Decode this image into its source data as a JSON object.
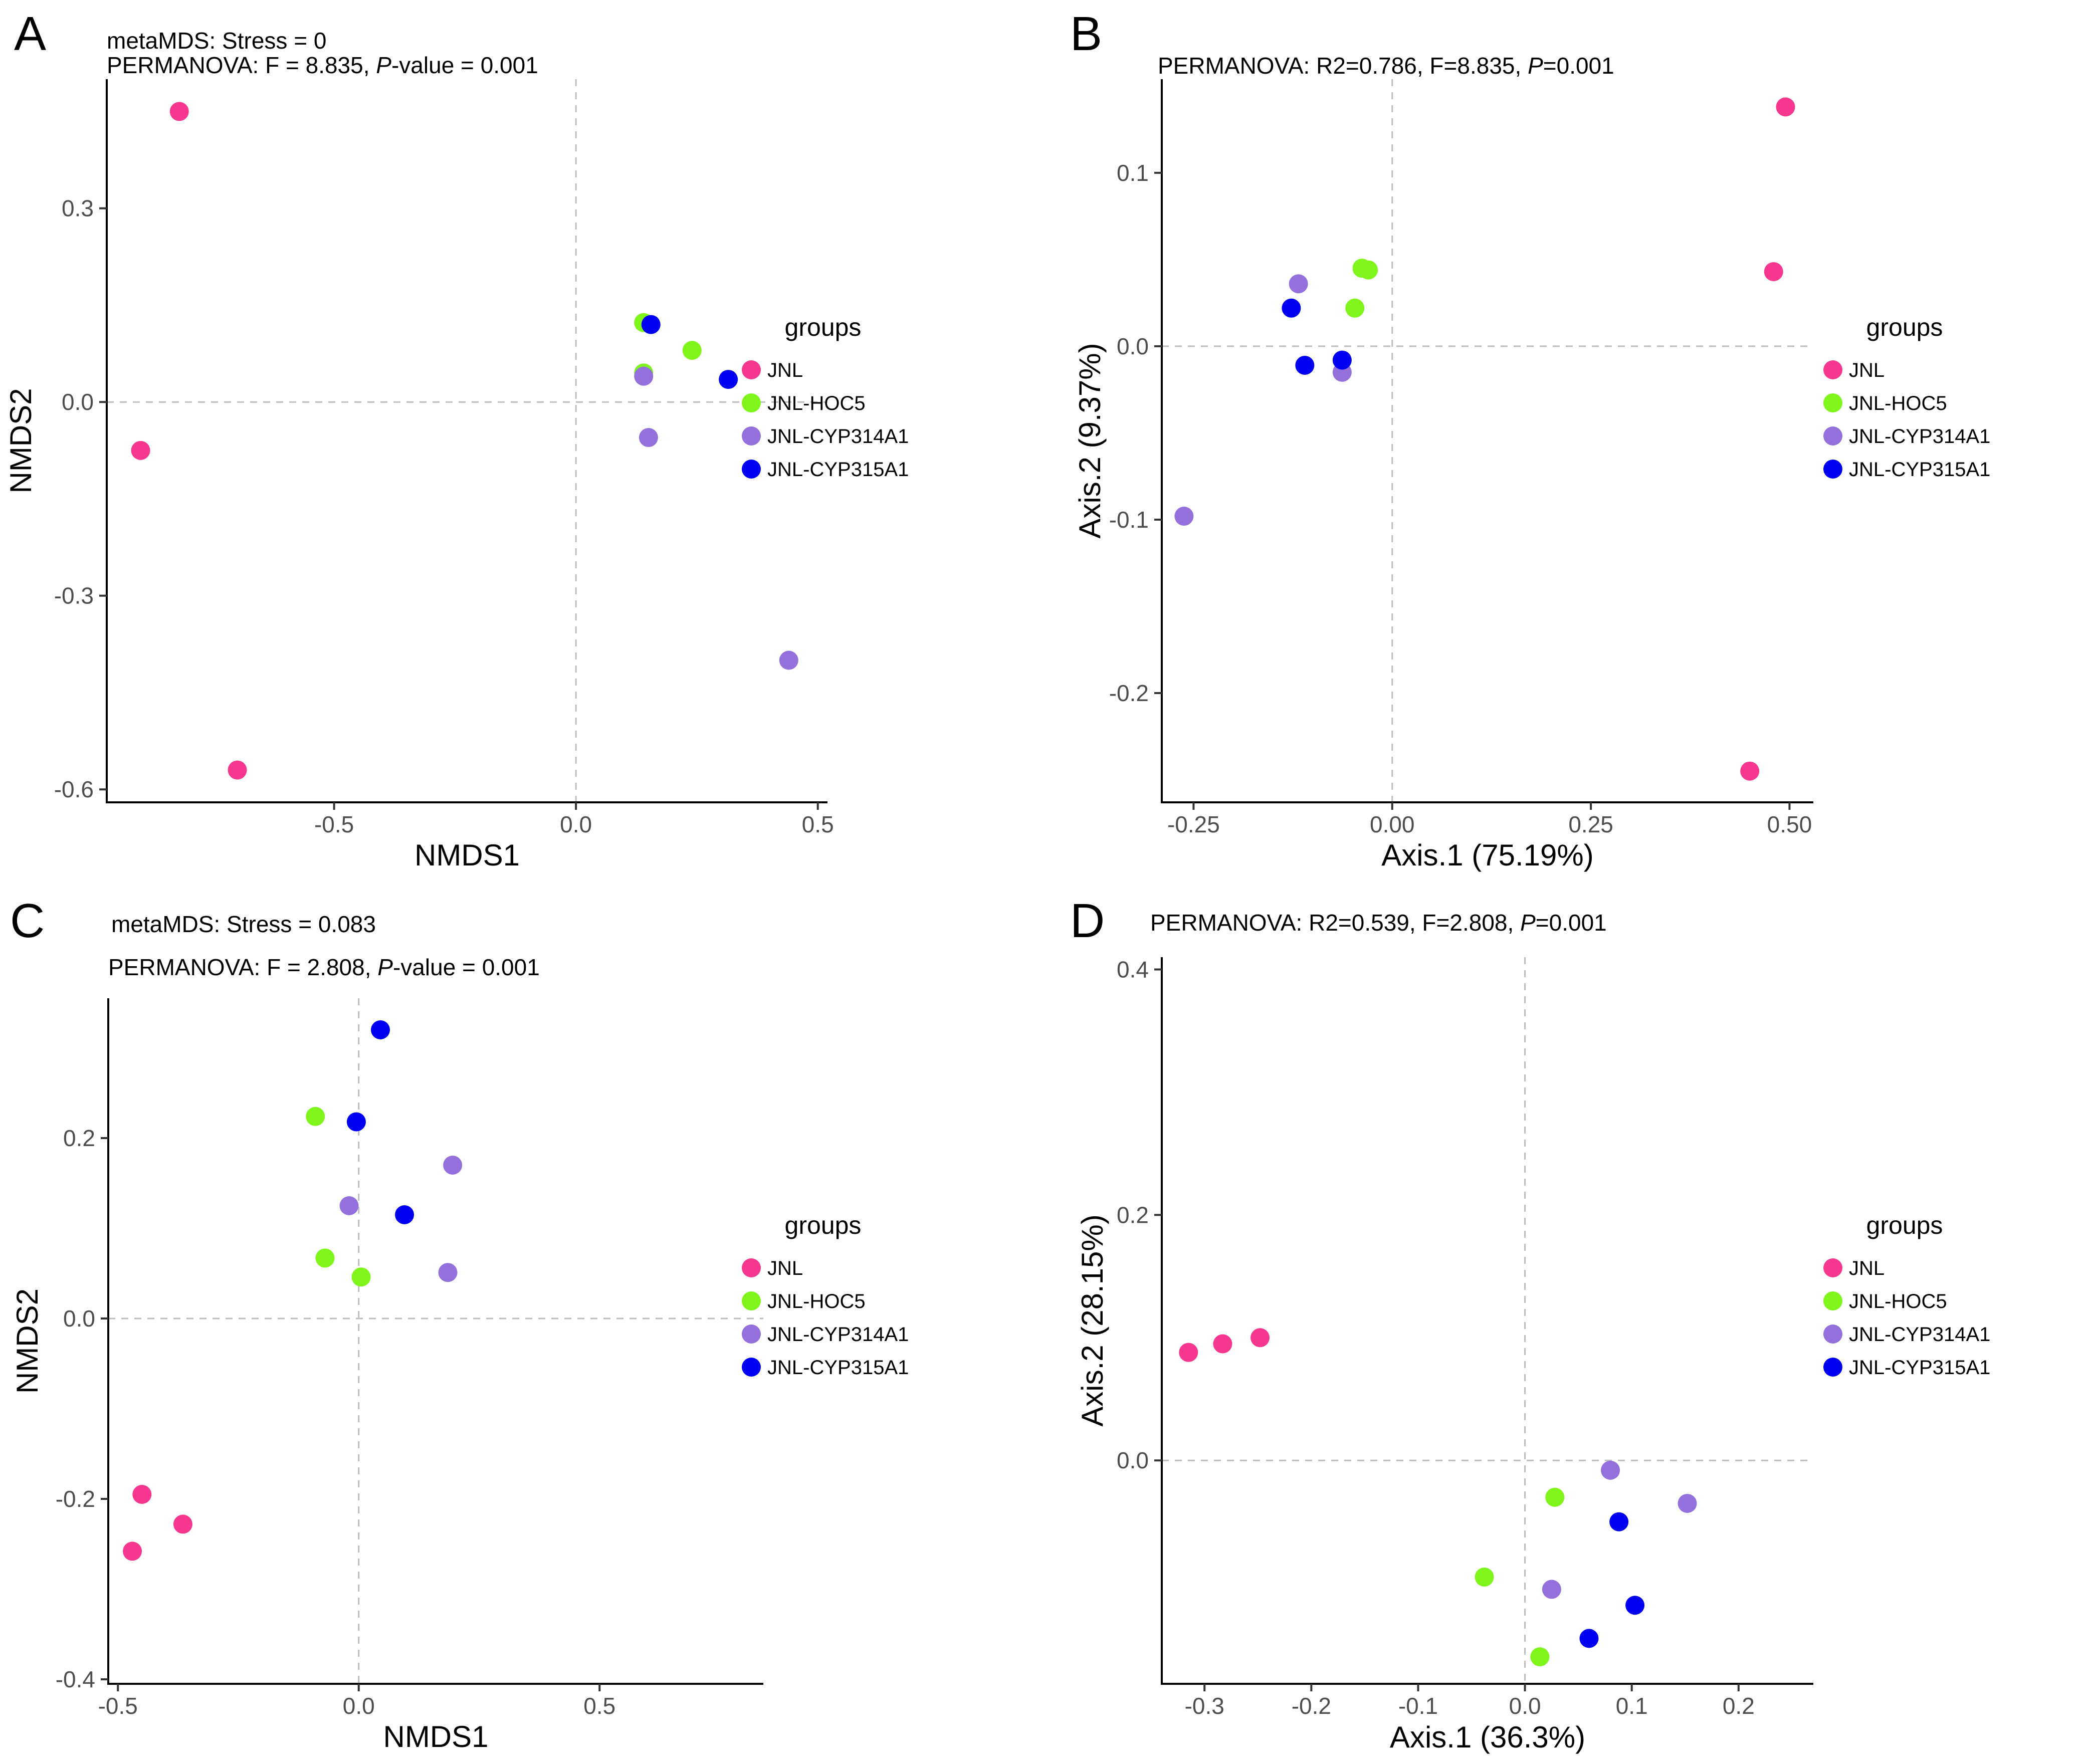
{
  "figure": {
    "groups": [
      {
        "name": "JNL",
        "color": "#f7378f"
      },
      {
        "name": "JNL-HOC5",
        "color": "#80f51c"
      },
      {
        "name": "JNL-CYP314A1",
        "color": "#9370db"
      },
      {
        "name": "JNL-CYP315A1",
        "color": "#0000f2"
      }
    ]
  },
  "chart_data": [
    {
      "panel": "A",
      "type": "scatter",
      "annotation_lines": [
        [
          {
            "text": "metaMDS: Stress = 0",
            "italic": false
          }
        ],
        [
          {
            "text": "PERMANOVA: F = 8.835, ",
            "italic": false
          },
          {
            "text": "P",
            "italic": true
          },
          {
            "text": "-value = 0.001",
            "italic": false
          }
        ]
      ],
      "xlabel": "NMDS1",
      "ylabel": "NMDS2",
      "xlim": [
        -0.97,
        0.52
      ],
      "ylim": [
        -0.62,
        0.5
      ],
      "xticks": [
        -0.5,
        0.0,
        0.5
      ],
      "xtick_labels": [
        "-0.5",
        "0.0",
        "0.5"
      ],
      "yticks": [
        -0.6,
        -0.3,
        0.0,
        0.3
      ],
      "ytick_labels": [
        "-0.6",
        "-0.3",
        "0.0",
        "0.3"
      ],
      "ref_x": 0,
      "ref_y": 0,
      "legend_title": "groups",
      "legend_position": "right",
      "series": [
        {
          "name": "JNL",
          "points": [
            [
              -0.82,
              0.45
            ],
            [
              -0.9,
              -0.075
            ],
            [
              -0.7,
              -0.57
            ]
          ]
        },
        {
          "name": "JNL-HOC5",
          "points": [
            [
              0.14,
              0.123
            ],
            [
              0.24,
              0.08
            ],
            [
              0.14,
              0.045
            ]
          ]
        },
        {
          "name": "JNL-CYP314A1",
          "points": [
            [
              0.14,
              0.04
            ],
            [
              0.15,
              -0.055
            ],
            [
              0.44,
              -0.4
            ]
          ]
        },
        {
          "name": "JNL-CYP315A1",
          "points": [
            [
              0.155,
              0.12
            ],
            [
              0.315,
              0.035
            ]
          ]
        }
      ]
    },
    {
      "panel": "B",
      "type": "scatter",
      "annotation_lines": [
        [
          {
            "text": "PERMANOVA: R2=0.786, F=8.835, ",
            "italic": false
          },
          {
            "text": "P",
            "italic": true
          },
          {
            "text": "=0.001",
            "italic": false
          }
        ]
      ],
      "xlabel": "Axis.1 (75.19%)",
      "ylabel": "Axis.2 (9.37%)",
      "xlim": [
        -0.29,
        0.53
      ],
      "ylim": [
        -0.263,
        0.154
      ],
      "xticks": [
        -0.25,
        0.0,
        0.25,
        0.5
      ],
      "xtick_labels": [
        "-0.25",
        "0.00",
        "0.25",
        "0.50"
      ],
      "yticks": [
        -0.2,
        -0.1,
        0.0,
        0.1
      ],
      "ytick_labels": [
        "-0.2",
        "-0.1",
        "0.0",
        "0.1"
      ],
      "ref_x": 0,
      "ref_y": 0,
      "legend_title": "groups",
      "legend_position": "right",
      "series": [
        {
          "name": "JNL",
          "points": [
            [
              0.495,
              0.138
            ],
            [
              0.48,
              0.043
            ],
            [
              0.45,
              -0.245
            ]
          ]
        },
        {
          "name": "JNL-HOC5",
          "points": [
            [
              -0.038,
              0.045
            ],
            [
              -0.03,
              0.044
            ],
            [
              -0.047,
              0.022
            ]
          ]
        },
        {
          "name": "JNL-CYP314A1",
          "points": [
            [
              -0.118,
              0.036
            ],
            [
              -0.063,
              -0.015
            ],
            [
              -0.262,
              -0.098
            ]
          ]
        },
        {
          "name": "JNL-CYP315A1",
          "points": [
            [
              -0.127,
              0.022
            ],
            [
              -0.11,
              -0.011
            ],
            [
              -0.063,
              -0.008
            ]
          ]
        }
      ]
    },
    {
      "panel": "C",
      "type": "scatter",
      "annotation_lines": [
        [
          {
            "text": "metaMDS: Stress = 0.083",
            "italic": false
          }
        ],
        [
          {
            "text": "PERMANOVA: F = 2.808, ",
            "italic": false
          },
          {
            "text": "P",
            "italic": true
          },
          {
            "text": "-value = 0.001",
            "italic": false
          }
        ]
      ],
      "xlabel": "NMDS1",
      "ylabel": "NMDS2",
      "xlim": [
        -0.52,
        0.84
      ],
      "ylim": [
        -0.405,
        0.355
      ],
      "xticks": [
        -0.5,
        0.0,
        0.5
      ],
      "xtick_labels": [
        "-0.5",
        "0.0",
        "0.5"
      ],
      "yticks": [
        -0.4,
        -0.2,
        0.0,
        0.2
      ],
      "ytick_labels": [
        "-0.4",
        "-0.2",
        "0.0",
        "0.2"
      ],
      "ref_x": 0,
      "ref_y": 0,
      "legend_title": "groups",
      "legend_position": "right",
      "series": [
        {
          "name": "JNL",
          "points": [
            [
              -0.45,
              -0.195
            ],
            [
              -0.365,
              -0.228
            ],
            [
              -0.47,
              -0.258
            ]
          ]
        },
        {
          "name": "JNL-HOC5",
          "points": [
            [
              -0.09,
              0.224
            ],
            [
              -0.07,
              0.067
            ],
            [
              0.005,
              0.046
            ]
          ]
        },
        {
          "name": "JNL-CYP314A1",
          "points": [
            [
              0.195,
              0.17
            ],
            [
              -0.02,
              0.125
            ],
            [
              0.185,
              0.051
            ]
          ]
        },
        {
          "name": "JNL-CYP315A1",
          "points": [
            [
              0.045,
              0.32
            ],
            [
              -0.005,
              0.218
            ],
            [
              0.095,
              0.115
            ]
          ]
        }
      ]
    },
    {
      "panel": "D",
      "type": "scatter",
      "annotation_lines": [
        [
          {
            "text": "PERMANOVA: R2=0.539, F=2.808, ",
            "italic": false
          },
          {
            "text": "P",
            "italic": true
          },
          {
            "text": "=0.001",
            "italic": false
          }
        ]
      ],
      "xlabel": "Axis.1 (36.3%)",
      "ylabel": "Axis.2 (28.15%)",
      "xlim": [
        -0.34,
        0.27
      ],
      "ylim": [
        -0.182,
        0.41
      ],
      "xticks": [
        -0.3,
        -0.2,
        -0.1,
        0.0,
        0.1,
        0.2
      ],
      "xtick_labels": [
        "-0.3",
        "-0.2",
        "-0.1",
        "0.0",
        "0.1",
        "0.2"
      ],
      "yticks": [
        0.0,
        0.2,
        0.4
      ],
      "ytick_labels": [
        "0.0",
        "0.2",
        "0.4"
      ],
      "ref_x": 0,
      "ref_y": 0,
      "legend_title": "groups",
      "legend_position": "right",
      "series": [
        {
          "name": "JNL",
          "points": [
            [
              -0.315,
              0.088
            ],
            [
              -0.283,
              0.095
            ],
            [
              -0.248,
              0.1
            ]
          ]
        },
        {
          "name": "JNL-HOC5",
          "points": [
            [
              0.028,
              -0.03
            ],
            [
              -0.038,
              -0.095
            ],
            [
              0.014,
              -0.16
            ]
          ]
        },
        {
          "name": "JNL-CYP314A1",
          "points": [
            [
              0.08,
              -0.008
            ],
            [
              0.152,
              -0.035
            ],
            [
              0.025,
              -0.105
            ]
          ]
        },
        {
          "name": "JNL-CYP315A1",
          "points": [
            [
              0.088,
              -0.05
            ],
            [
              0.103,
              -0.118
            ],
            [
              0.06,
              -0.145
            ]
          ]
        }
      ]
    }
  ]
}
